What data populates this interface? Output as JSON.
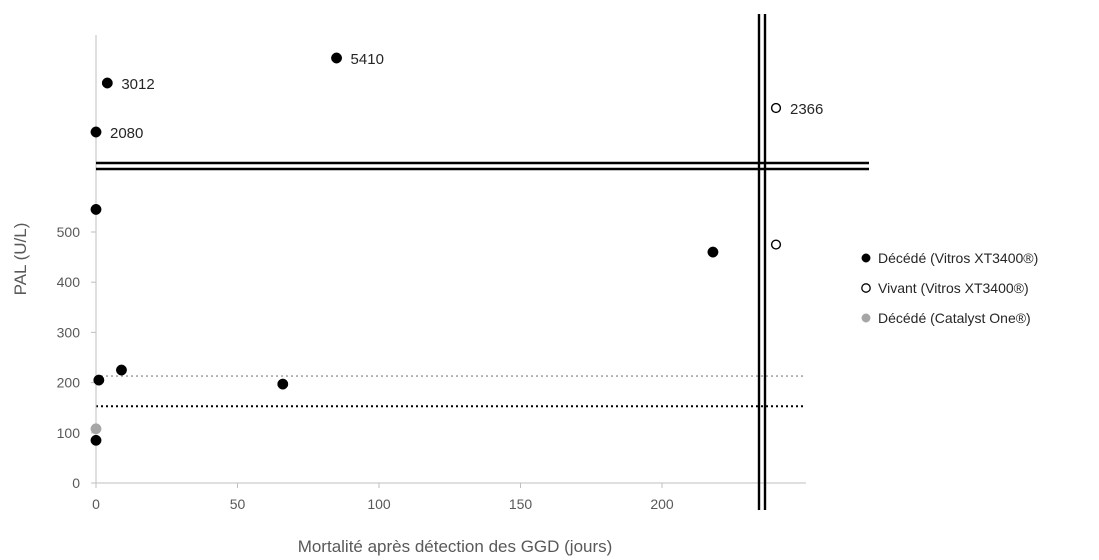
{
  "chart_data": {
    "type": "scatter",
    "xlabel": "Mortalité après détection des GGD (jours)",
    "ylabel": "PAL (U/L)",
    "xlim": [
      0,
      250
    ],
    "ylim": [
      0,
      500
    ],
    "x_ticks": [
      0,
      50,
      100,
      150,
      200
    ],
    "y_ticks": [
      0,
      100,
      200,
      300,
      400,
      500
    ],
    "grid": false,
    "legend_position": "right",
    "axis_break": {
      "x_after": 235,
      "y_above": 500
    },
    "reference_lines": [
      {
        "y": 213,
        "color": "#a6a6a6",
        "style": "dotted"
      },
      {
        "y": 153,
        "color": "#000000",
        "style": "dotted"
      }
    ],
    "series": [
      {
        "name": "Décédé (Vitros XT3400®)",
        "marker": "filled",
        "color": "#000000",
        "points": [
          {
            "x": 0,
            "y": 85
          },
          {
            "x": 1,
            "y": 205
          },
          {
            "x": 9,
            "y": 225
          },
          {
            "x": 66,
            "y": 197
          },
          {
            "x": 0,
            "y": 545
          },
          {
            "x": 218,
            "y": 460
          },
          {
            "x": 0,
            "y": 2080,
            "label": "2080"
          },
          {
            "x": 4,
            "y": 3012,
            "label": "3012"
          },
          {
            "x": 85,
            "y": 5410,
            "label": "5410"
          }
        ]
      },
      {
        "name": "Vivant (Vitros XT3400®)",
        "marker": "open",
        "color": "#000000",
        "points": [
          {
            "x": 250,
            "y": 475
          },
          {
            "x": 250,
            "y": 2366,
            "label": "2366"
          }
        ]
      },
      {
        "name": "Décédé (Catalyst One®)",
        "marker": "filled",
        "color": "#a6a6a6",
        "points": [
          {
            "x": 0,
            "y": 108
          }
        ]
      }
    ]
  }
}
